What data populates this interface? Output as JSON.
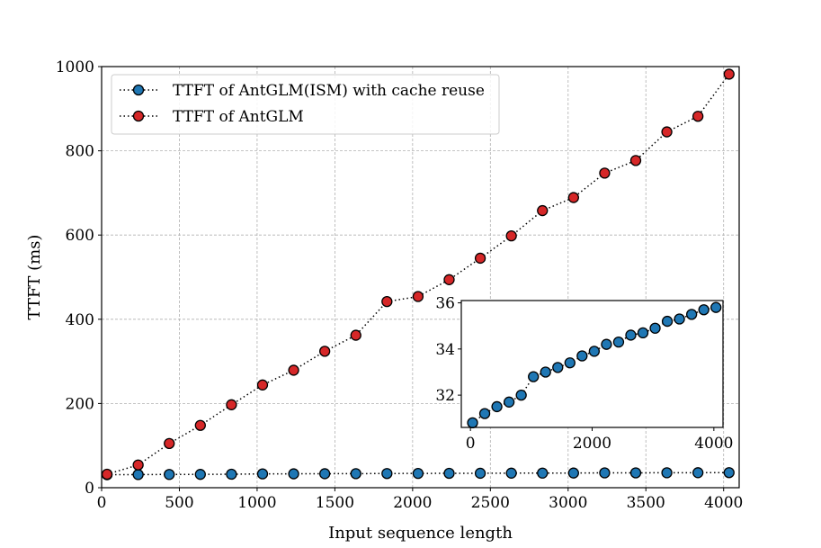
{
  "chart_data": [
    {
      "type": "line",
      "title": "",
      "xlabel": "Input sequence length",
      "ylabel": "TTFT (ms)",
      "xlim": [
        0,
        4100
      ],
      "ylim": [
        0,
        1000
      ],
      "xticks": [
        0,
        500,
        1000,
        1500,
        2000,
        2500,
        3000,
        3500,
        4000
      ],
      "yticks": [
        0,
        200,
        400,
        600,
        800,
        1000
      ],
      "grid": true,
      "legend_position": "top-left",
      "series": [
        {
          "name": "TTFT of AntGLM(ISM) with cache reuse",
          "color": "#1f77b4",
          "x": [
            35,
            235,
            435,
            635,
            835,
            1035,
            1235,
            1435,
            1635,
            1835,
            2035,
            2235,
            2435,
            2635,
            2835,
            3035,
            3235,
            3435,
            3635,
            3835,
            4035
          ],
          "y": [
            30.8,
            31.2,
            31.5,
            31.7,
            32.0,
            32.8,
            33.0,
            33.2,
            33.4,
            33.7,
            33.9,
            34.2,
            34.3,
            34.6,
            34.7,
            34.9,
            35.2,
            35.3,
            35.5,
            35.7,
            35.8
          ]
        },
        {
          "name": "TTFT of AntGLM",
          "color": "#d62728",
          "x": [
            35,
            235,
            435,
            635,
            835,
            1035,
            1235,
            1435,
            1635,
            1835,
            2035,
            2235,
            2435,
            2635,
            2835,
            3035,
            3235,
            3435,
            3635,
            3835,
            4035
          ],
          "y": [
            32,
            54,
            105,
            148,
            197,
            244,
            279,
            324,
            362,
            442,
            454,
            494,
            545,
            598,
            658,
            689,
            747,
            777,
            845,
            882,
            982
          ]
        }
      ]
    },
    {
      "type": "scatter",
      "title": "",
      "xlabel": "",
      "ylabel": "",
      "xlim": [
        -150,
        4150
      ],
      "ylim": [
        30.6,
        36.1
      ],
      "xticks": [
        0,
        2000,
        4000
      ],
      "yticks": [
        32,
        34,
        36
      ],
      "grid": false,
      "series": [
        {
          "color": "#1f77b4",
          "x": [
            35,
            235,
            435,
            635,
            835,
            1035,
            1235,
            1435,
            1635,
            1835,
            2035,
            2235,
            2435,
            2635,
            2835,
            3035,
            3235,
            3435,
            3635,
            3835,
            4035
          ],
          "y": [
            30.8,
            31.2,
            31.5,
            31.7,
            32.0,
            32.8,
            33.0,
            33.2,
            33.4,
            33.7,
            33.9,
            34.2,
            34.3,
            34.6,
            34.7,
            34.9,
            35.2,
            35.3,
            35.5,
            35.7,
            35.8
          ]
        }
      ]
    }
  ]
}
